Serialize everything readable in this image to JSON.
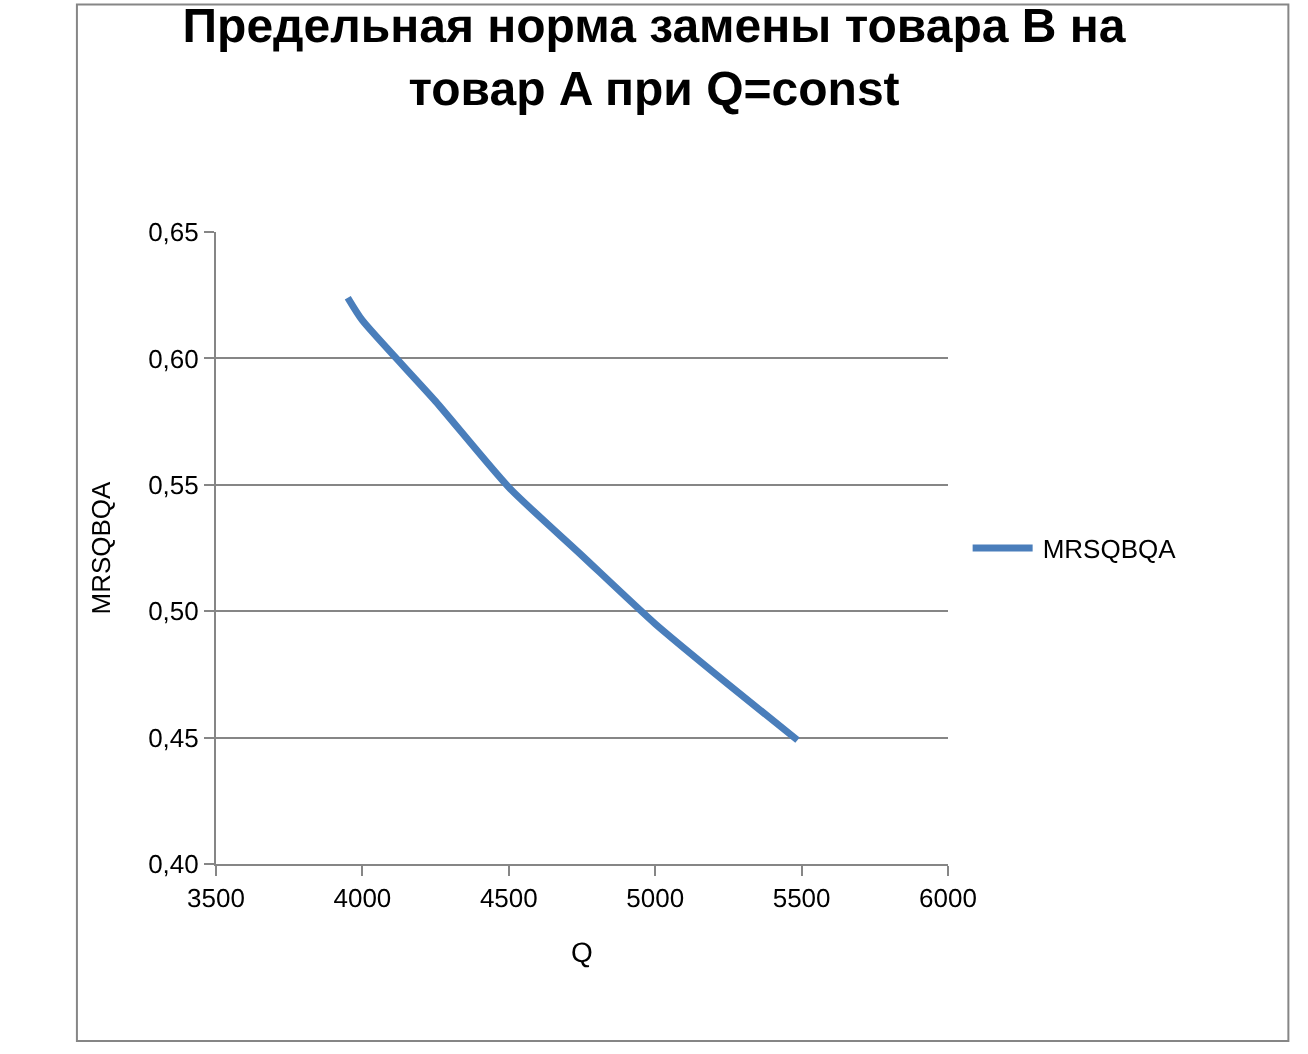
{
  "chart_data": {
    "type": "line",
    "title": "Предельная норма замены товара B на товар A при Q=const",
    "xlabel": "Q",
    "ylabel": "MRSQBQA",
    "x": [
      3950,
      4000,
      4250,
      4500,
      4750,
      5000,
      5250,
      5486
    ],
    "series": [
      {
        "name": "MRSQBQA",
        "color": "#4a7ebb",
        "values": [
          0.624,
          0.615,
          0.583,
          0.549,
          0.522,
          0.495,
          0.471,
          0.449
        ]
      }
    ],
    "xlim": [
      3500,
      6000
    ],
    "xticks": [
      3500,
      4000,
      4500,
      5000,
      5500,
      6000
    ],
    "ylim": [
      0.4,
      0.65
    ],
    "yticks": [
      {
        "value": 0.4,
        "label": "0,40"
      },
      {
        "value": 0.45,
        "label": "0,45"
      },
      {
        "value": 0.5,
        "label": "0,50"
      },
      {
        "value": 0.55,
        "label": "0,55"
      },
      {
        "value": 0.6,
        "label": "0,60"
      },
      {
        "value": 0.65,
        "label": "0,65"
      }
    ],
    "grid": "y",
    "legend": "right",
    "marker": "none",
    "line_style": "solid"
  }
}
